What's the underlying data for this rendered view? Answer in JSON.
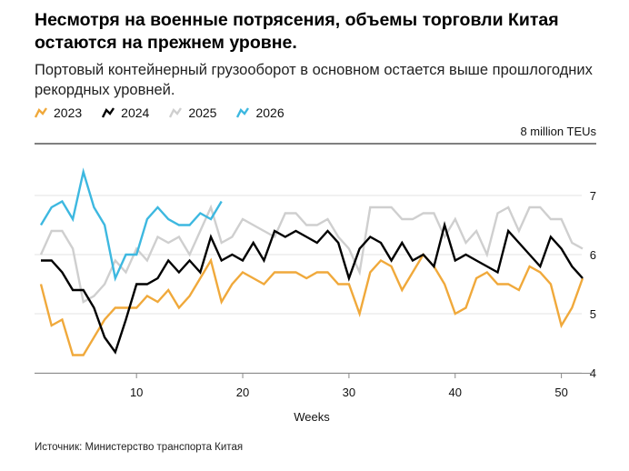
{
  "header": {
    "title": "Несмотря на военные потрясения, объемы торговли Китая остаются на прежнем уровне.",
    "subtitle": "Портовый контейнерный грузооборот в основном остается выше прошлогодних рекордных уровней."
  },
  "footer": {
    "source": "Источник: Министерство транспорта Китая"
  },
  "chart_data": {
    "type": "line",
    "title": "Несмотря на военные потрясения, объемы торговли Китая остаются на прежнем уровне.",
    "subtitle": "Портовый контейнерный грузооборот в основном остается выше прошлогодних рекордных уровней.",
    "xlabel": "Weeks",
    "ylabel": "",
    "y_unit_label": "8 million TEUs",
    "xlim": [
      1,
      52
    ],
    "ylim": [
      4,
      8
    ],
    "x_ticks": [
      10,
      20,
      30,
      40,
      50
    ],
    "y_ticks": [
      4,
      5,
      6,
      7
    ],
    "grid": "horizontal",
    "legend_position": "top-left",
    "series": [
      {
        "name": "2023",
        "color": "#f0a93b",
        "x": [
          1,
          2,
          3,
          4,
          5,
          6,
          7,
          8,
          9,
          10,
          11,
          12,
          13,
          14,
          15,
          16,
          17,
          18,
          19,
          20,
          21,
          22,
          23,
          24,
          25,
          26,
          27,
          28,
          29,
          30,
          31,
          32,
          33,
          34,
          35,
          36,
          37,
          38,
          39,
          40,
          41,
          42,
          43,
          44,
          45,
          46,
          47,
          48,
          49,
          50,
          51,
          52
        ],
        "values": [
          5.5,
          4.8,
          4.9,
          4.3,
          4.3,
          4.6,
          4.9,
          5.1,
          5.1,
          5.1,
          5.3,
          5.2,
          5.4,
          5.1,
          5.3,
          5.6,
          5.9,
          5.2,
          5.5,
          5.7,
          5.6,
          5.5,
          5.7,
          5.7,
          5.7,
          5.6,
          5.7,
          5.7,
          5.5,
          5.5,
          5.0,
          5.7,
          5.9,
          5.8,
          5.4,
          5.7,
          6.0,
          5.8,
          5.5,
          5.0,
          5.1,
          5.6,
          5.7,
          5.5,
          5.5,
          5.4,
          5.8,
          5.7,
          5.5,
          4.8,
          5.1,
          5.6
        ]
      },
      {
        "name": "2024",
        "color": "#000000",
        "x": [
          1,
          2,
          3,
          4,
          5,
          6,
          7,
          8,
          9,
          10,
          11,
          12,
          13,
          14,
          15,
          16,
          17,
          18,
          19,
          20,
          21,
          22,
          23,
          24,
          25,
          26,
          27,
          28,
          29,
          30,
          31,
          32,
          33,
          34,
          35,
          36,
          37,
          38,
          39,
          40,
          41,
          42,
          43,
          44,
          45,
          46,
          47,
          48,
          49,
          50,
          51,
          52
        ],
        "values": [
          5.9,
          5.9,
          5.7,
          5.4,
          5.4,
          5.1,
          4.6,
          4.35,
          4.9,
          5.5,
          5.5,
          5.6,
          5.9,
          5.7,
          5.9,
          5.7,
          6.3,
          5.9,
          6.0,
          5.9,
          6.2,
          5.9,
          6.4,
          6.3,
          6.4,
          6.3,
          6.2,
          6.4,
          6.2,
          5.6,
          6.1,
          6.3,
          6.2,
          5.9,
          6.2,
          5.9,
          6.0,
          5.8,
          6.5,
          5.9,
          6.0,
          5.9,
          5.8,
          5.7,
          6.4,
          6.2,
          6.0,
          5.8,
          6.3,
          6.1,
          5.8,
          5.6
        ]
      },
      {
        "name": "2025",
        "color": "#cfcfcf",
        "x": [
          1,
          2,
          3,
          4,
          5,
          6,
          7,
          8,
          9,
          10,
          11,
          12,
          13,
          14,
          15,
          16,
          17,
          18,
          19,
          20,
          21,
          22,
          23,
          24,
          25,
          26,
          27,
          28,
          29,
          30,
          31,
          32,
          33,
          34,
          35,
          36,
          37,
          38,
          39,
          40,
          41,
          42,
          43,
          44,
          45,
          46,
          47,
          48,
          49,
          50,
          51,
          52
        ],
        "values": [
          6.0,
          6.4,
          6.4,
          6.1,
          5.2,
          5.3,
          5.5,
          5.9,
          5.7,
          6.1,
          5.9,
          6.3,
          6.2,
          6.3,
          6.0,
          6.4,
          6.8,
          6.2,
          6.3,
          6.6,
          6.5,
          6.4,
          6.3,
          6.7,
          6.7,
          6.5,
          6.5,
          6.6,
          6.3,
          6.1,
          5.7,
          6.8,
          6.8,
          6.8,
          6.6,
          6.6,
          6.7,
          6.7,
          6.3,
          6.6,
          6.2,
          6.4,
          6.0,
          6.7,
          6.8,
          6.4,
          6.8,
          6.8,
          6.6,
          6.6,
          6.2,
          6.1
        ]
      },
      {
        "name": "2026",
        "color": "#3db8e0",
        "x": [
          1,
          2,
          3,
          4,
          5,
          6,
          7,
          8,
          9,
          10,
          11,
          12,
          13,
          14,
          15,
          16,
          17,
          18
        ],
        "values": [
          6.5,
          6.8,
          6.9,
          6.6,
          7.4,
          6.8,
          6.5,
          5.6,
          6.0,
          6.0,
          6.6,
          6.8,
          6.6,
          6.5,
          6.5,
          6.7,
          6.6,
          6.9
        ]
      }
    ]
  }
}
